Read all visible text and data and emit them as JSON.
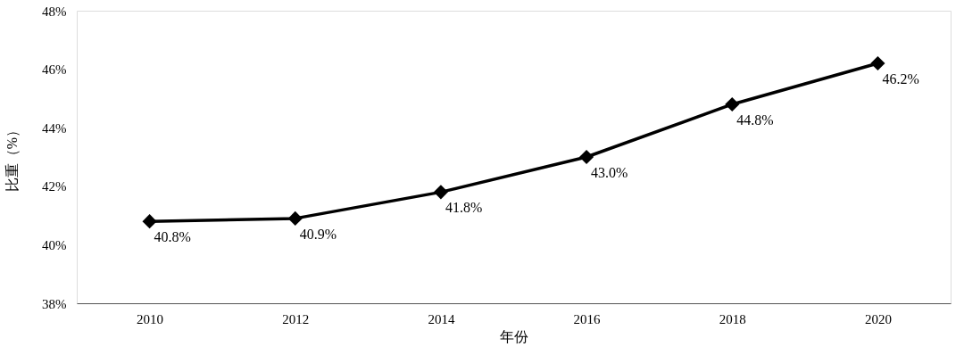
{
  "chart_data": {
    "type": "line",
    "xlabel": "年份",
    "ylabel": "比重（%）",
    "categories": [
      "2010",
      "2012",
      "2014",
      "2016",
      "2018",
      "2020"
    ],
    "series": [
      {
        "color": "#000000",
        "values": [
          40.8,
          40.9,
          41.8,
          43.0,
          44.8,
          46.2
        ],
        "value_labels": [
          "40.8%",
          "40.9%",
          "41.8%",
          "43.0%",
          "44.8%",
          "46.2%"
        ]
      }
    ],
    "ylim": [
      38,
      48
    ],
    "yticks": [
      {
        "value": 38,
        "label": "38%"
      },
      {
        "value": 40,
        "label": "40%"
      },
      {
        "value": 42,
        "label": "42%"
      },
      {
        "value": 44,
        "label": "44%"
      },
      {
        "value": 46,
        "label": "46%"
      },
      {
        "value": 48,
        "label": "48%"
      }
    ],
    "marker": "diamond",
    "line_style": "solid",
    "grid": false
  }
}
